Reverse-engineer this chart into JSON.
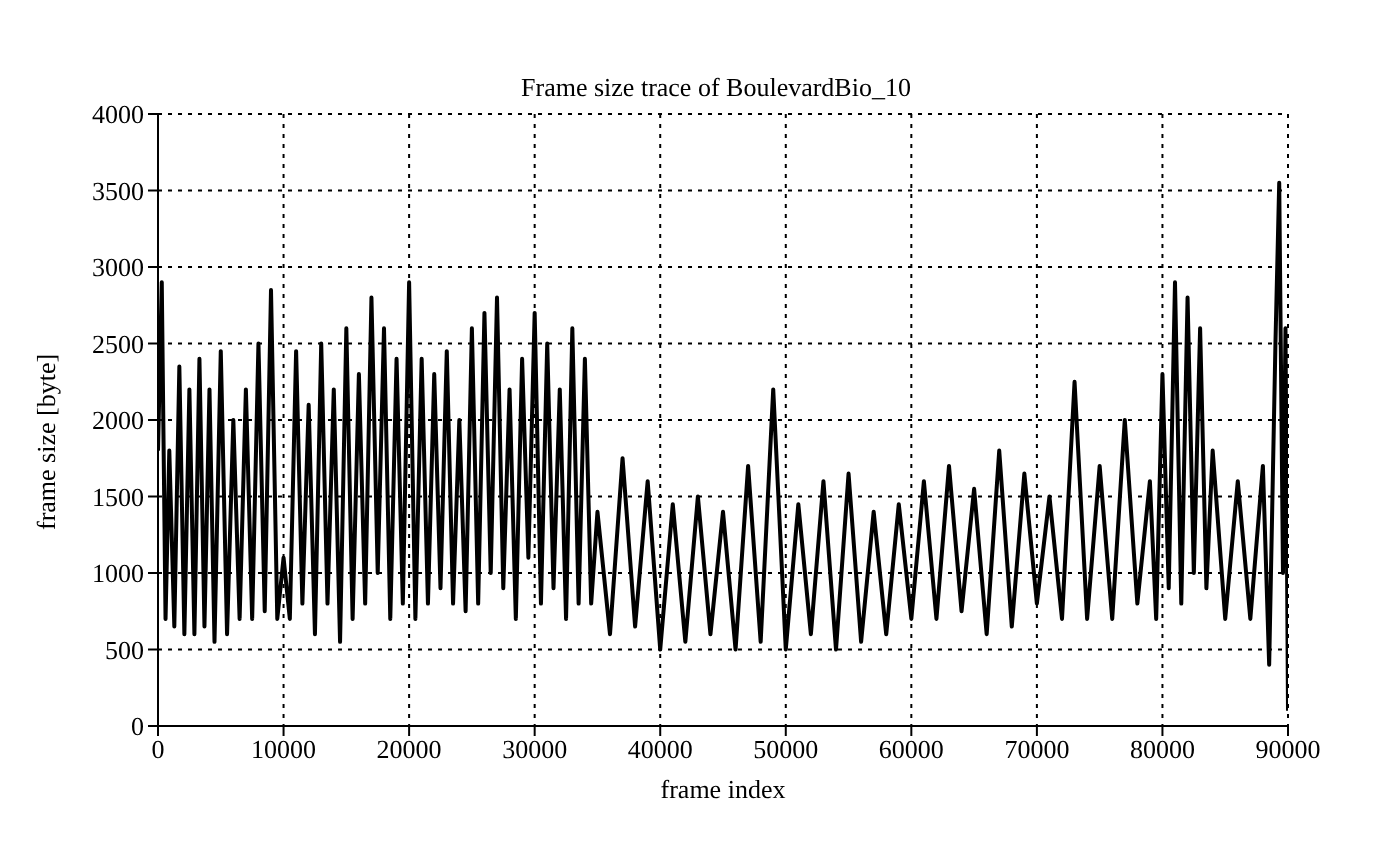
{
  "chart_data": {
    "type": "line",
    "title": "Frame size trace of BoulevardBio_10",
    "xlabel": "frame index",
    "ylabel": "frame size [byte]",
    "x": [
      0,
      300,
      600,
      900,
      1300,
      1700,
      2100,
      2500,
      2900,
      3300,
      3700,
      4100,
      4500,
      5000,
      5500,
      6000,
      6500,
      7000,
      7500,
      8000,
      8500,
      9000,
      9500,
      10000,
      10500,
      11000,
      11500,
      12000,
      12500,
      13000,
      13500,
      14000,
      14500,
      15000,
      15500,
      16000,
      16500,
      17000,
      17500,
      18000,
      18500,
      19000,
      19500,
      20000,
      20500,
      21000,
      21500,
      22000,
      22500,
      23000,
      23500,
      24000,
      24500,
      25000,
      25500,
      26000,
      26500,
      27000,
      27500,
      28000,
      28500,
      29000,
      29500,
      30000,
      30500,
      31000,
      31500,
      32000,
      32500,
      33000,
      33500,
      34000,
      34500,
      35000,
      36000,
      37000,
      38000,
      39000,
      40000,
      41000,
      42000,
      43000,
      44000,
      45000,
      46000,
      47000,
      48000,
      49000,
      50000,
      51000,
      52000,
      53000,
      54000,
      55000,
      56000,
      57000,
      58000,
      59000,
      60000,
      61000,
      62000,
      63000,
      64000,
      65000,
      66000,
      67000,
      68000,
      69000,
      70000,
      71000,
      72000,
      73000,
      74000,
      75000,
      76000,
      77000,
      78000,
      79000,
      79500,
      80000,
      80500,
      81000,
      81500,
      82000,
      82500,
      83000,
      83500,
      84000,
      85000,
      86000,
      87000,
      88000,
      88500,
      89000,
      89300,
      89600,
      89800,
      90000
    ],
    "series": [
      {
        "color": "#000000",
        "values": [
          1800,
          2900,
          700,
          1800,
          650,
          2350,
          600,
          2200,
          600,
          2400,
          650,
          2200,
          550,
          2450,
          600,
          2000,
          700,
          2200,
          700,
          2500,
          750,
          2850,
          700,
          1100,
          700,
          2450,
          800,
          2100,
          600,
          2500,
          800,
          2200,
          550,
          2600,
          700,
          2300,
          800,
          2800,
          1000,
          2600,
          700,
          2400,
          800,
          2900,
          700,
          2400,
          800,
          2300,
          900,
          2450,
          800,
          2000,
          750,
          2600,
          800,
          2700,
          1000,
          2800,
          900,
          2200,
          700,
          2400,
          1100,
          2700,
          800,
          2500,
          900,
          2200,
          700,
          2600,
          800,
          2400,
          800,
          1400,
          600,
          1750,
          650,
          1600,
          500,
          1450,
          550,
          1500,
          600,
          1400,
          500,
          1700,
          550,
          2200,
          500,
          1450,
          600,
          1600,
          500,
          1650,
          550,
          1400,
          600,
          1450,
          700,
          1600,
          700,
          1700,
          750,
          1550,
          600,
          1800,
          650,
          1650,
          800,
          1500,
          700,
          2250,
          700,
          1700,
          700,
          2000,
          800,
          1600,
          700,
          2300,
          900,
          2900,
          800,
          2800,
          1000,
          2600,
          900,
          1800,
          700,
          1600,
          700,
          1700,
          400,
          2500,
          3550,
          1000,
          2600,
          100
        ]
      }
    ],
    "xlim": [
      0,
      90000
    ],
    "xticks": [
      0,
      10000,
      20000,
      30000,
      40000,
      50000,
      60000,
      70000,
      80000,
      90000
    ],
    "ylim": [
      0,
      4000
    ],
    "yticks": [
      0,
      500,
      1000,
      1500,
      2000,
      2500,
      3000,
      3500,
      4000
    ],
    "grid": true,
    "marker": "none",
    "line_style": "solid"
  }
}
